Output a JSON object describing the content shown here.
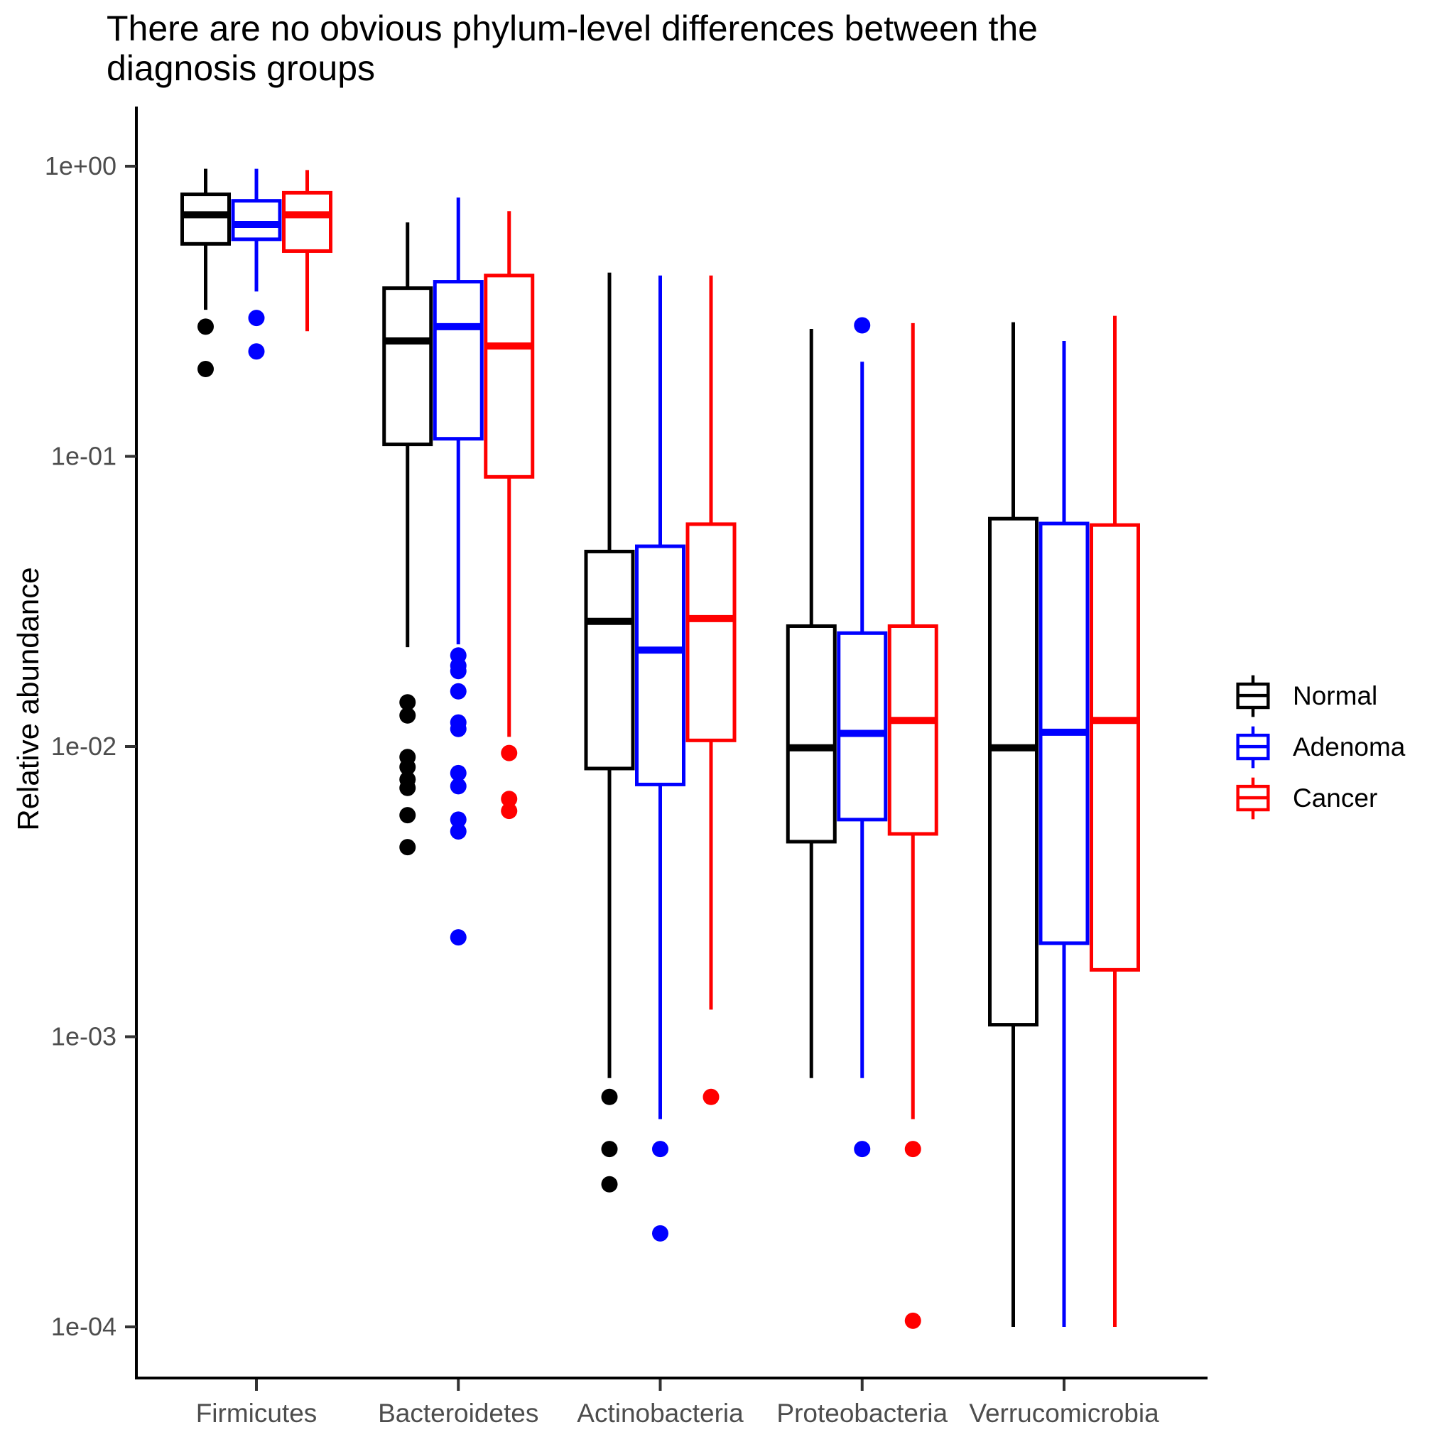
{
  "chart_data": {
    "type": "boxplot",
    "title": "There are no obvious phylum-level differences between the diagnosis groups",
    "ylabel": "Relative abundance",
    "y_scale": "log10",
    "ylim": [
      5e-05,
      1.6
    ],
    "grid": false,
    "legend_position": "right",
    "y_ticks": [
      {
        "label": "1e+00",
        "value": 1
      },
      {
        "label": "1e-01",
        "value": 0.1
      },
      {
        "label": "1e-02",
        "value": 0.01
      },
      {
        "label": "1e-03",
        "value": 0.001
      },
      {
        "label": "1e-04",
        "value": 0.0001
      }
    ],
    "categories": [
      "Firmicutes",
      "Bacteroidetes",
      "Actinobacteria",
      "Proteobacteria",
      "Verrucomicrobia"
    ],
    "series": [
      {
        "name": "Normal",
        "color": "#000000",
        "boxes": [
          {
            "whisker_low": 0.32,
            "q1": 0.54,
            "median": 0.68,
            "q3": 0.8,
            "whisker_high": 0.98,
            "outliers": [
              0.28,
              0.2
            ]
          },
          {
            "whisker_low": 0.022,
            "q1": 0.11,
            "median": 0.25,
            "q3": 0.38,
            "whisker_high": 0.64,
            "outliers": [
              0.0142,
              0.0128,
              0.0092,
              0.0085,
              0.0077,
              0.0072,
              0.0058,
              0.0045
            ]
          },
          {
            "whisker_low": 0.00072,
            "q1": 0.0084,
            "median": 0.027,
            "q3": 0.047,
            "whisker_high": 0.43,
            "outliers": [
              0.00062,
              0.00041,
              0.00031
            ]
          },
          {
            "whisker_low": 0.00072,
            "q1": 0.0047,
            "median": 0.0099,
            "q3": 0.026,
            "whisker_high": 0.275,
            "outliers": []
          },
          {
            "whisker_low": 0.0001,
            "q1": 0.0011,
            "median": 0.0099,
            "q3": 0.061,
            "whisker_high": 0.29,
            "outliers": []
          }
        ]
      },
      {
        "name": "Adenoma",
        "color": "#0000ff",
        "boxes": [
          {
            "whisker_low": 0.37,
            "q1": 0.56,
            "median": 0.63,
            "q3": 0.76,
            "whisker_high": 0.98,
            "outliers": [
              0.3,
              0.23
            ]
          },
          {
            "whisker_low": 0.0225,
            "q1": 0.115,
            "median": 0.28,
            "q3": 0.4,
            "whisker_high": 0.78,
            "outliers": [
              0.0206,
              0.019,
              0.0182,
              0.0155,
              0.0121,
              0.0115,
              0.0081,
              0.0073,
              0.0056,
              0.0051,
              0.0022
            ]
          },
          {
            "whisker_low": 0.00052,
            "q1": 0.0074,
            "median": 0.0215,
            "q3": 0.049,
            "whisker_high": 0.42,
            "outliers": [
              0.00041,
              0.00021
            ]
          },
          {
            "whisker_low": 0.00072,
            "q1": 0.0056,
            "median": 0.0111,
            "q3": 0.0246,
            "whisker_high": 0.212,
            "outliers": [
              0.283,
              0.00041
            ]
          },
          {
            "whisker_low": 0.0001,
            "q1": 0.0021,
            "median": 0.0112,
            "q3": 0.0587,
            "whisker_high": 0.25,
            "outliers": []
          }
        ]
      },
      {
        "name": "Cancer",
        "color": "#ff0000",
        "boxes": [
          {
            "whisker_low": 0.27,
            "q1": 0.51,
            "median": 0.68,
            "q3": 0.81,
            "whisker_high": 0.97,
            "outliers": []
          },
          {
            "whisker_low": 0.0108,
            "q1": 0.085,
            "median": 0.24,
            "q3": 0.42,
            "whisker_high": 0.7,
            "outliers": [
              0.0095,
              0.0066,
              0.006
            ]
          },
          {
            "whisker_low": 0.00124,
            "q1": 0.0105,
            "median": 0.0276,
            "q3": 0.0584,
            "whisker_high": 0.42,
            "outliers": [
              0.00062
            ]
          },
          {
            "whisker_low": 0.00052,
            "q1": 0.005,
            "median": 0.0123,
            "q3": 0.026,
            "whisker_high": 0.288,
            "outliers": [
              0.00041,
              0.000105
            ]
          },
          {
            "whisker_low": 0.0001,
            "q1": 0.0017,
            "median": 0.0123,
            "q3": 0.058,
            "whisker_high": 0.305,
            "outliers": []
          }
        ]
      }
    ]
  }
}
